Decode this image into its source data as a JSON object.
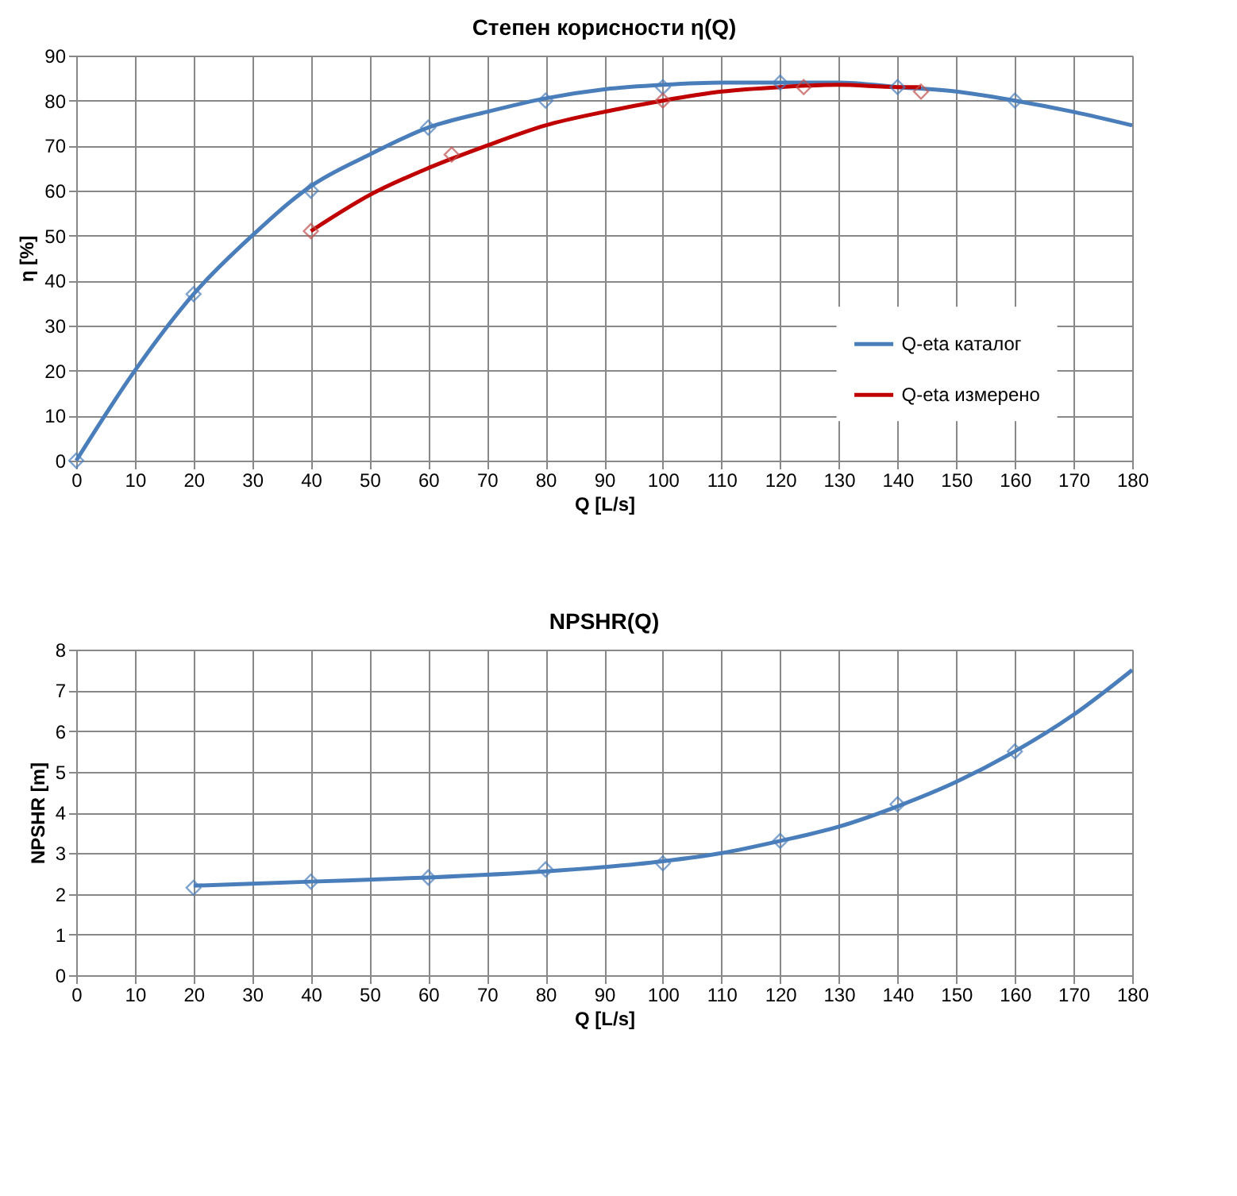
{
  "chart_data": [
    {
      "type": "line",
      "title": "Степен корисности η(Q)",
      "xlabel": "Q [L/s]",
      "ylabel": "η [%]",
      "xlim": [
        0,
        180
      ],
      "xticks": [
        0,
        10,
        20,
        30,
        40,
        50,
        60,
        70,
        80,
        90,
        100,
        110,
        120,
        130,
        140,
        150,
        160,
        170,
        180
      ],
      "ylim": [
        0,
        90
      ],
      "yticks": [
        0,
        10,
        20,
        30,
        40,
        50,
        60,
        70,
        80,
        90
      ],
      "grid": true,
      "legend": "bottom right",
      "series": [
        {
          "name": "Q-eta каталог",
          "type": "line",
          "color": "#4a7ebb",
          "marker": "none",
          "x": [
            0,
            10,
            20,
            30,
            40,
            50,
            60,
            70,
            80,
            90,
            100,
            110,
            120,
            130,
            140,
            150,
            160,
            170,
            180
          ],
          "values": [
            0,
            20,
            37,
            50,
            61,
            68,
            74,
            77.5,
            80.5,
            82.5,
            83.5,
            84,
            84,
            84,
            83,
            82,
            80,
            77.5,
            74.5
          ]
        },
        {
          "name": "Q-eta измерено",
          "type": "line",
          "color": "#c00000",
          "marker": "none",
          "x": [
            40,
            50,
            60,
            70,
            80,
            90,
            100,
            110,
            120,
            130,
            140,
            144
          ],
          "values": [
            51,
            59,
            65,
            70,
            74.5,
            77.5,
            80,
            82,
            83,
            83.5,
            83,
            83
          ]
        },
        {
          "type": "scatter",
          "color": "#4a7ebb",
          "marker": "diamond",
          "x": [
            0,
            20,
            40,
            60,
            80,
            100,
            120,
            140,
            160
          ],
          "values": [
            0,
            37,
            60,
            74,
            80,
            83,
            84,
            83,
            80
          ]
        },
        {
          "type": "scatter",
          "color": "#c0504d",
          "marker": "diamond",
          "x": [
            40,
            64,
            100,
            124,
            144
          ],
          "values": [
            51,
            68,
            80,
            83,
            82
          ]
        }
      ]
    },
    {
      "type": "line",
      "title": "NPSHR(Q)",
      "xlabel": "Q [L/s]",
      "ylabel": "NPSHR [m]",
      "xlim": [
        0,
        180
      ],
      "xticks": [
        0,
        10,
        20,
        30,
        40,
        50,
        60,
        70,
        80,
        90,
        100,
        110,
        120,
        130,
        140,
        150,
        160,
        170,
        180
      ],
      "ylim": [
        0,
        8
      ],
      "yticks": [
        0,
        1,
        2,
        3,
        4,
        5,
        6,
        7,
        8
      ],
      "grid": true,
      "series": [
        {
          "type": "line",
          "color": "#4a7ebb",
          "marker": "none",
          "x": [
            20,
            40,
            60,
            80,
            100,
            110,
            120,
            130,
            140,
            150,
            160,
            170,
            180
          ],
          "values": [
            2.2,
            2.3,
            2.4,
            2.55,
            2.8,
            3.0,
            3.3,
            3.65,
            4.15,
            4.75,
            5.5,
            6.4,
            7.5
          ]
        },
        {
          "type": "scatter",
          "color": "#4a7ebb",
          "marker": "diamond",
          "x": [
            20,
            40,
            60,
            80,
            100,
            120,
            140,
            160
          ],
          "values": [
            2.15,
            2.3,
            2.4,
            2.6,
            2.75,
            3.3,
            4.2,
            5.5
          ]
        }
      ]
    }
  ]
}
